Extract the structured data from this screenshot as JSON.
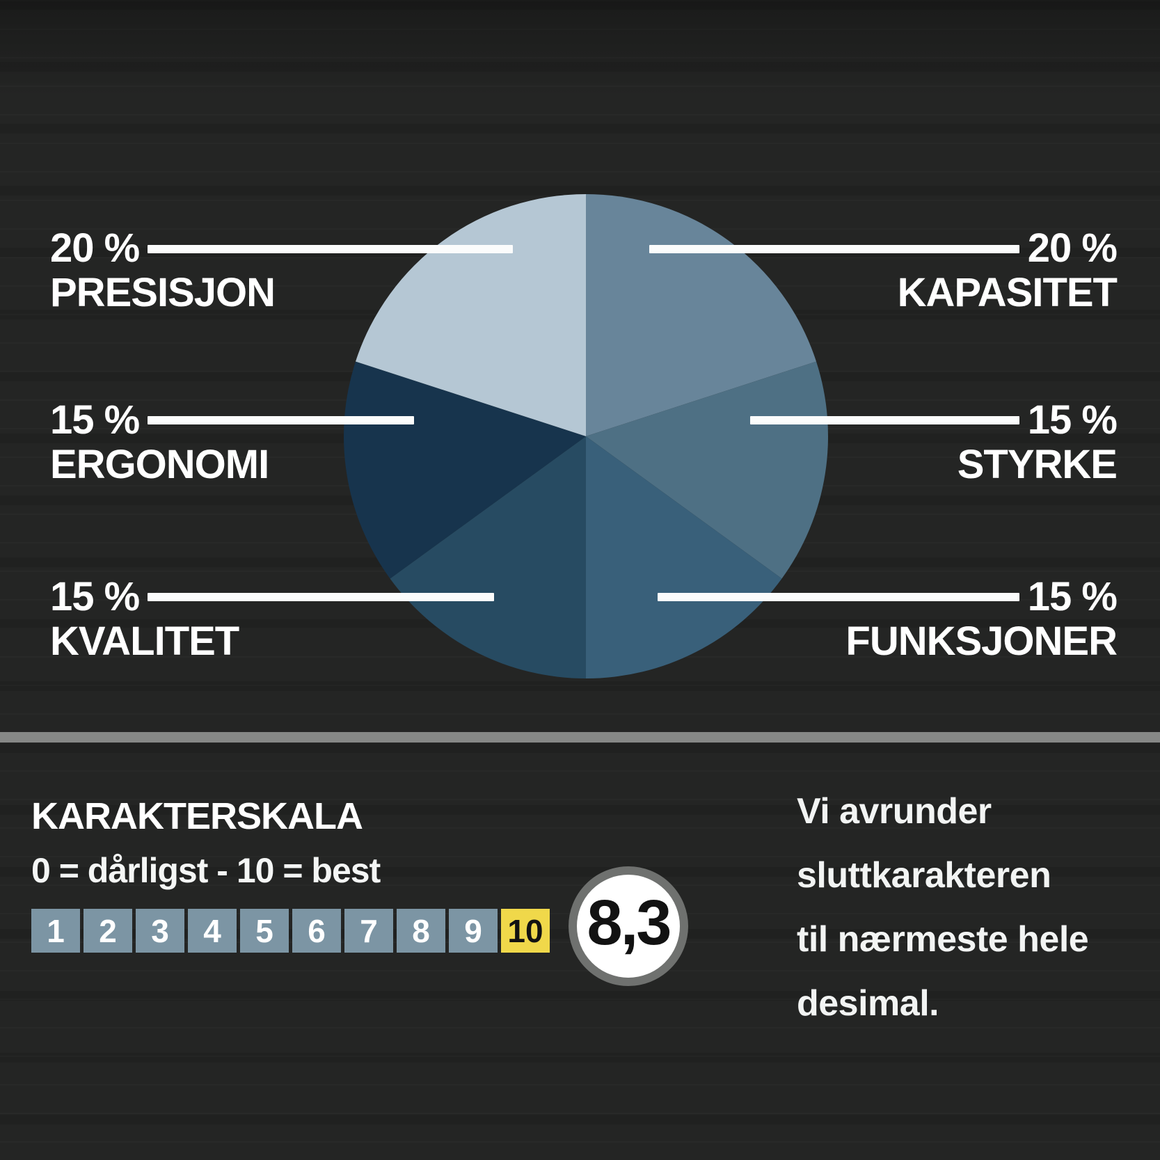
{
  "chart_data": {
    "type": "pie",
    "title": "",
    "start_angle_deg": 0,
    "direction": "clockwise",
    "legend_position": "sides",
    "slices": [
      {
        "label": "KAPASITET",
        "pct": 20,
        "color": "#68859a"
      },
      {
        "label": "STYRKE",
        "pct": 15,
        "color": "#4e7084"
      },
      {
        "label": "FUNKSJONER",
        "pct": 15,
        "color": "#39607a"
      },
      {
        "label": "KVALITET",
        "pct": 15,
        "color": "#274b62"
      },
      {
        "label": "ERGONOMI",
        "pct": 15,
        "color": "#17344d"
      },
      {
        "label": "PRESISJON",
        "pct": 20,
        "color": "#b5c7d4"
      }
    ]
  },
  "legend": {
    "left": [
      {
        "pct": "20 %",
        "label": "PRESISJON"
      },
      {
        "pct": "15 %",
        "label": "ERGONOMI"
      },
      {
        "pct": "15 %",
        "label": "KVALITET"
      }
    ],
    "right": [
      {
        "pct": "20 %",
        "label": "KAPASITET"
      },
      {
        "pct": "15 %",
        "label": "STYRKE"
      },
      {
        "pct": "15 %",
        "label": "FUNKSJONER"
      }
    ]
  },
  "scale": {
    "heading": "KARAKTERSKALA",
    "subheading": "0 = dårligst - 10 = best",
    "cells": [
      "1",
      "2",
      "3",
      "4",
      "5",
      "6",
      "7",
      "8",
      "9",
      "10"
    ],
    "highlighted_cell": "10",
    "cell_color": "#7c95a4",
    "highlight_color": "#f0d84a",
    "score": "8,3"
  },
  "note": {
    "lines": [
      "Vi avrunder",
      "sluttkarakteren",
      "til nærmeste hele",
      "desimal."
    ]
  }
}
